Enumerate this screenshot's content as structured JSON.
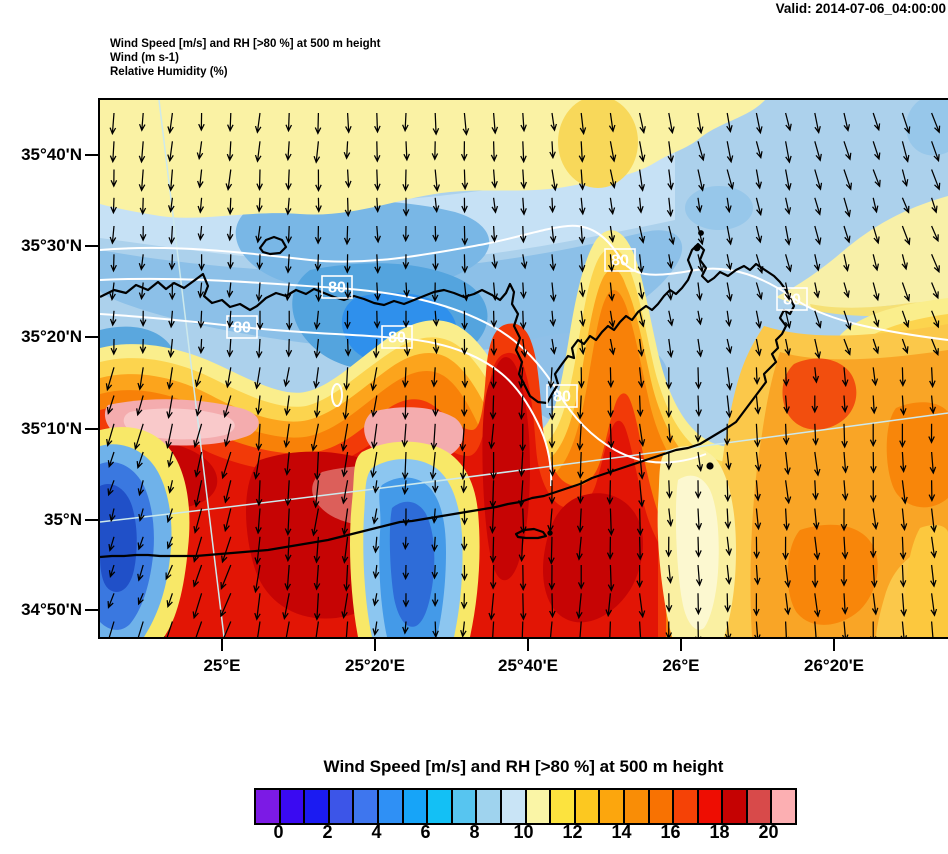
{
  "valid_label": "Valid: 2014-07-06_04:00:00",
  "header": {
    "line1": "Wind Speed [m/s] and RH [>80 %] at 500 m height",
    "line2": "Wind   (m s-1)",
    "line3": "Relative Humidity   (%)"
  },
  "map": {
    "lat_labels": [
      "35°40'N",
      "35°30'N",
      "35°20'N",
      "35°10'N",
      "35°N",
      "34°50'N"
    ],
    "lon_labels": [
      "25°E",
      "25°20'E",
      "25°40'E",
      "26°E",
      "26°20'E"
    ],
    "contour_label": "80",
    "contour_color": "#FFFFFF",
    "coastline_color": "#000000",
    "graticule_color": "#CDE9EC",
    "arrow_color": "#000000"
  },
  "colorbar": {
    "title": "Wind Speed [m/s] and RH [>80 %] at 500 m height",
    "tick_labels": [
      "0",
      "2",
      "4",
      "6",
      "8",
      "10",
      "12",
      "14",
      "16",
      "18",
      "20"
    ],
    "colors": [
      "#7C1AE5",
      "#3A0AF2",
      "#1B1BF2",
      "#3C55E8",
      "#3E76EE",
      "#2F90F5",
      "#17A4F8",
      "#13C0F5",
      "#57C5F0",
      "#9FD3EE",
      "#C9E4F6",
      "#FAF5A6",
      "#FCE33E",
      "#FCC820",
      "#FCA60D",
      "#F98D06",
      "#F87202",
      "#F54206",
      "#EE0D02",
      "#C50202",
      "#D84A4A",
      "#FCAFB2"
    ]
  },
  "chart_data": {
    "type": "heatmap",
    "title": "Wind Speed [m/s] and RH [>80 %] at 500 m height",
    "valid_time": "Valid: 2014-07-06_04:00:00",
    "fill_variable": "Wind (m s-1)",
    "contour_variable": "Relative Humidity (%)",
    "contour_levels_shown": [
      80,
      80,
      80,
      80,
      80,
      80
    ],
    "x_axis": {
      "type": "longitude",
      "ticks": [
        "25°E",
        "25°20'E",
        "25°40'E",
        "26°E",
        "26°20'E"
      ]
    },
    "y_axis": {
      "type": "latitude",
      "ticks": [
        "35°40'N",
        "35°30'N",
        "35°20'N",
        "35°10'N",
        "35°N",
        "34°50'N"
      ]
    },
    "colorbar_values": [
      0,
      2,
      4,
      6,
      8,
      10,
      12,
      14,
      16,
      18,
      20
    ],
    "colorbar_cell_colors": [
      "#7C1AE5",
      "#3A0AF2",
      "#1B1BF2",
      "#3C55E8",
      "#3E76EE",
      "#2F90F5",
      "#17A4F8",
      "#13C0F5",
      "#57C5F0",
      "#9FD3EE",
      "#C9E4F6",
      "#FAF5A6",
      "#FCE33E",
      "#FCC820",
      "#FCA60D",
      "#F98D06",
      "#F87202",
      "#F54206",
      "#EE0D02",
      "#C50202",
      "#D84A4A",
      "#FCAFB2"
    ],
    "wind_vectors": "regular grid of arrows pointing predominantly south (northerly flow), longer arrows over the strong-wind (red/pink) areas south of the island",
    "legend_position": "bottom"
  }
}
